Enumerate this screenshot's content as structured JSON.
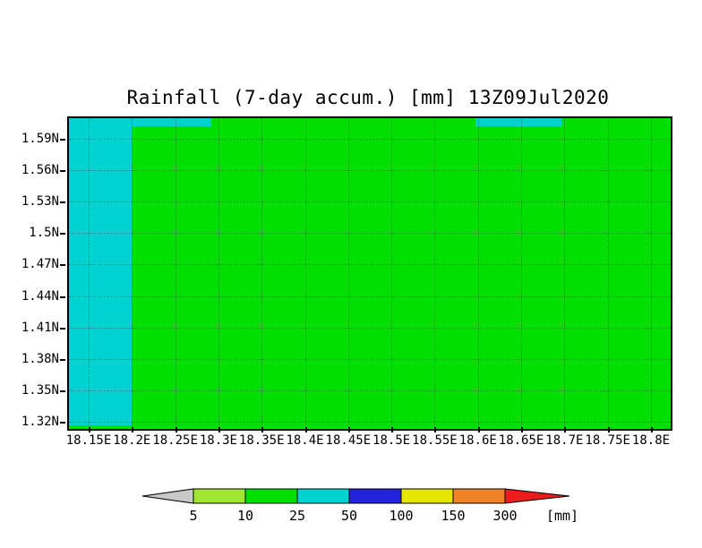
{
  "title": "Rainfall (7-day accum.) [mm] 13Z09Jul2020",
  "chart_data": {
    "type": "heatmap",
    "title": "Rainfall (7-day accum.) [mm] 13Z09Jul2020",
    "x_axis_unit": "longitude (E)",
    "y_axis_unit": "latitude (N)",
    "x_ticks": [
      "18.15E",
      "18.2E",
      "18.25E",
      "18.3E",
      "18.35E",
      "18.4E",
      "18.45E",
      "18.5E",
      "18.55E",
      "18.6E",
      "18.65E",
      "18.7E",
      "18.75E",
      "18.8E"
    ],
    "y_ticks": [
      "1.59N",
      "1.56N",
      "1.53N",
      "1.5N",
      "1.47N",
      "1.44N",
      "1.41N",
      "1.38N",
      "1.35N",
      "1.32N"
    ],
    "x_range": [
      18.127,
      18.823
    ],
    "y_range": [
      1.313,
      1.61
    ],
    "grid": true,
    "base_fill": {
      "color": "#00df00",
      "value_band": "10-25 mm"
    },
    "regions": [
      {
        "name": "west-cyan-band",
        "color": "#00d2d2",
        "value_band": "25-50 mm",
        "lon_from": 18.127,
        "lon_to": 18.2,
        "lat_from": 1.313,
        "lat_to": 1.61
      },
      {
        "name": "north-cyan-band-1",
        "color": "#00d2d2",
        "value_band": "25-50 mm",
        "lon_from": 18.2,
        "lon_to": 18.293,
        "lat_from": 1.602,
        "lat_to": 1.61
      },
      {
        "name": "north-cyan-band-2",
        "color": "#00d2d2",
        "value_band": "25-50 mm",
        "lon_from": 18.6,
        "lon_to": 18.7,
        "lat_from": 1.602,
        "lat_to": 1.61
      }
    ],
    "colorbar": {
      "levels": [
        "5",
        "10",
        "25",
        "50",
        "100",
        "150",
        "300"
      ],
      "unit_label": "[mm]",
      "segment_colors": [
        "#c8c8c8",
        "#a0e632",
        "#00df00",
        "#00d2d2",
        "#2323dc",
        "#e6e600",
        "#f08228",
        "#eb1c1c"
      ],
      "segment_bands": [
        "<5",
        "5-10",
        "10-25",
        "25-50",
        "50-100",
        "100-150",
        "150-300",
        ">300"
      ],
      "outline_color": "#000000"
    }
  }
}
